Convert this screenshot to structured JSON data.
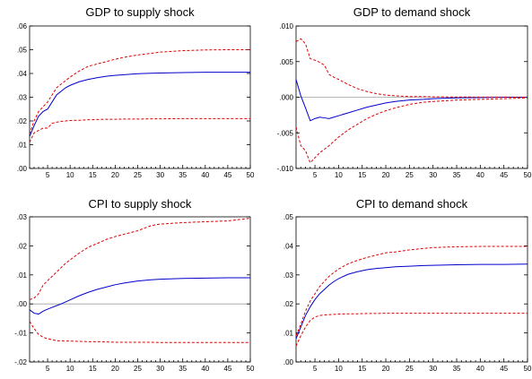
{
  "colors": {
    "irf": "#0000cc",
    "band": "#dd0000",
    "zero_line": "#a0a0a0",
    "background": "#ffffff"
  },
  "chart_data": [
    {
      "type": "line",
      "title": "GDP to supply shock",
      "xlim": [
        1,
        50
      ],
      "ylim": [
        0.0,
        0.06
      ],
      "x_ticks": [
        5,
        10,
        15,
        20,
        25,
        30,
        35,
        40,
        45,
        50
      ],
      "x_tick_labels": [
        "5",
        "10",
        "15",
        "20",
        "25",
        "30",
        "35",
        "40",
        "45",
        "50"
      ],
      "y_ticks": [
        0.0,
        0.01,
        0.02,
        0.03,
        0.04,
        0.05,
        0.06
      ],
      "y_tick_labels": [
        ".00",
        ".01",
        ".02",
        ".03",
        ".04",
        ".05",
        ".06"
      ],
      "zero_line": false,
      "grid": false,
      "x": [
        1,
        2,
        3,
        4,
        5,
        6,
        7,
        8,
        9,
        10,
        12,
        14,
        16,
        18,
        20,
        22,
        25,
        28,
        30,
        35,
        40,
        45,
        50
      ],
      "series": [
        {
          "role": "irf",
          "values": [
            0.0135,
            0.018,
            0.022,
            0.024,
            0.025,
            0.028,
            0.031,
            0.0325,
            0.034,
            0.035,
            0.0365,
            0.0375,
            0.0382,
            0.0388,
            0.0392,
            0.0395,
            0.0399,
            0.0401,
            0.0402,
            0.0404,
            0.0405,
            0.0405,
            0.0405
          ]
        },
        {
          "role": "upper",
          "values": [
            0.0145,
            0.02,
            0.024,
            0.026,
            0.028,
            0.031,
            0.034,
            0.0355,
            0.037,
            0.0385,
            0.041,
            0.043,
            0.044,
            0.045,
            0.046,
            0.0468,
            0.0478,
            0.0485,
            0.049,
            0.0496,
            0.0499,
            0.05,
            0.05
          ]
        },
        {
          "role": "lower",
          "values": [
            0.011,
            0.015,
            0.016,
            0.017,
            0.017,
            0.019,
            0.0195,
            0.0198,
            0.02,
            0.0202,
            0.0203,
            0.0205,
            0.0206,
            0.0207,
            0.0207,
            0.0208,
            0.0208,
            0.0209,
            0.0209,
            0.021,
            0.021,
            0.021,
            0.021
          ]
        }
      ]
    },
    {
      "type": "line",
      "title": "GDP to demand shock",
      "xlim": [
        1,
        50
      ],
      "ylim": [
        -0.01,
        0.01
      ],
      "x_ticks": [
        5,
        10,
        15,
        20,
        25,
        30,
        35,
        40,
        45,
        50
      ],
      "x_tick_labels": [
        "5",
        "10",
        "15",
        "20",
        "25",
        "30",
        "35",
        "40",
        "45",
        "50"
      ],
      "y_ticks": [
        -0.01,
        -0.005,
        0.0,
        0.005,
        0.01
      ],
      "y_tick_labels": [
        "-.010",
        "-.005",
        ".000",
        ".005",
        ".010"
      ],
      "zero_line": true,
      "grid": false,
      "x": [
        1,
        2,
        3,
        4,
        5,
        6,
        7,
        8,
        9,
        10,
        12,
        14,
        16,
        18,
        20,
        22,
        25,
        28,
        30,
        35,
        40,
        45,
        50
      ],
      "series": [
        {
          "role": "irf",
          "values": [
            0.0025,
            0.0002,
            -0.0015,
            -0.0033,
            -0.003,
            -0.0028,
            -0.0029,
            -0.003,
            -0.0028,
            -0.0026,
            -0.0022,
            -0.0018,
            -0.0014,
            -0.0011,
            -0.0008,
            -0.0006,
            -0.0004,
            -0.0003,
            -0.0002,
            -0.0001,
            -5e-05,
            0.0,
            0.0
          ]
        },
        {
          "role": "upper",
          "values": [
            0.0078,
            0.0082,
            0.0075,
            0.0054,
            0.0052,
            0.0049,
            0.0045,
            0.0032,
            0.0028,
            0.0025,
            0.0018,
            0.0012,
            0.0008,
            0.0005,
            0.0003,
            0.0002,
            0.0001,
            8e-05,
            5e-05,
            3e-05,
            2e-05,
            1e-05,
            1e-05
          ]
        },
        {
          "role": "lower",
          "values": [
            -0.0042,
            -0.0068,
            -0.0075,
            -0.0092,
            -0.0085,
            -0.0078,
            -0.0073,
            -0.0068,
            -0.0062,
            -0.0056,
            -0.0046,
            -0.0038,
            -0.003,
            -0.0024,
            -0.0019,
            -0.0015,
            -0.001,
            -0.0007,
            -0.0006,
            -0.0004,
            -0.0003,
            -0.0002,
            -0.0001
          ]
        }
      ]
    },
    {
      "type": "line",
      "title": "CPI to supply shock",
      "xlim": [
        1,
        50
      ],
      "ylim": [
        -0.02,
        0.03
      ],
      "x_ticks": [
        5,
        10,
        15,
        20,
        25,
        30,
        35,
        40,
        45,
        50
      ],
      "x_tick_labels": [
        "5",
        "10",
        "15",
        "20",
        "25",
        "30",
        "35",
        "40",
        "45",
        "50"
      ],
      "y_ticks": [
        -0.02,
        -0.01,
        0.0,
        0.01,
        0.02,
        0.03
      ],
      "y_tick_labels": [
        "-.02",
        "-.01",
        ".00",
        ".01",
        ".02",
        ".03"
      ],
      "zero_line": true,
      "grid": false,
      "x": [
        1,
        2,
        3,
        4,
        5,
        6,
        7,
        8,
        9,
        10,
        12,
        14,
        16,
        18,
        20,
        22,
        25,
        28,
        30,
        35,
        40,
        45,
        50
      ],
      "series": [
        {
          "role": "irf",
          "values": [
            -0.002,
            -0.0032,
            -0.0035,
            -0.0025,
            -0.0018,
            -0.0012,
            -0.0006,
            0.0,
            0.0007,
            0.0014,
            0.0028,
            0.004,
            0.005,
            0.0058,
            0.0066,
            0.0072,
            0.0079,
            0.0083,
            0.0085,
            0.0088,
            0.0089,
            0.009,
            0.009
          ]
        },
        {
          "role": "upper",
          "values": [
            0.0015,
            0.002,
            0.0035,
            0.0065,
            0.008,
            0.0095,
            0.011,
            0.0125,
            0.014,
            0.0152,
            0.0175,
            0.0195,
            0.0208,
            0.0222,
            0.0232,
            0.024,
            0.0252,
            0.027,
            0.0275,
            0.028,
            0.0283,
            0.0286,
            0.0295
          ]
        },
        {
          "role": "lower",
          "values": [
            -0.006,
            -0.0085,
            -0.0105,
            -0.0115,
            -0.012,
            -0.0123,
            -0.0127,
            -0.0127,
            -0.0128,
            -0.0128,
            -0.0129,
            -0.013,
            -0.013,
            -0.0131,
            -0.0132,
            -0.0132,
            -0.0132,
            -0.0132,
            -0.0133,
            -0.0133,
            -0.0133,
            -0.0133,
            -0.0133
          ]
        }
      ]
    },
    {
      "type": "line",
      "title": "CPI to demand shock",
      "xlim": [
        1,
        50
      ],
      "ylim": [
        0.0,
        0.05
      ],
      "x_ticks": [
        5,
        10,
        15,
        20,
        25,
        30,
        35,
        40,
        45,
        50
      ],
      "x_tick_labels": [
        "5",
        "10",
        "15",
        "20",
        "25",
        "30",
        "35",
        "40",
        "45",
        "50"
      ],
      "y_ticks": [
        0.0,
        0.01,
        0.02,
        0.03,
        0.04,
        0.05
      ],
      "y_tick_labels": [
        ".00",
        ".01",
        ".02",
        ".03",
        ".04",
        ".05"
      ],
      "zero_line": false,
      "grid": false,
      "x": [
        1,
        2,
        3,
        4,
        5,
        6,
        7,
        8,
        9,
        10,
        12,
        14,
        16,
        18,
        20,
        22,
        25,
        28,
        30,
        35,
        40,
        45,
        50
      ],
      "series": [
        {
          "role": "irf",
          "values": [
            0.008,
            0.012,
            0.016,
            0.019,
            0.0215,
            0.0235,
            0.025,
            0.0265,
            0.0277,
            0.0287,
            0.0302,
            0.0311,
            0.0318,
            0.0322,
            0.0325,
            0.0328,
            0.033,
            0.0332,
            0.0333,
            0.0335,
            0.0336,
            0.0336,
            0.0337
          ]
        },
        {
          "role": "upper",
          "values": [
            0.009,
            0.013,
            0.0175,
            0.021,
            0.0235,
            0.026,
            0.0278,
            0.0295,
            0.0308,
            0.032,
            0.0338,
            0.035,
            0.036,
            0.0368,
            0.0376,
            0.0379,
            0.0386,
            0.0391,
            0.0394,
            0.0397,
            0.0398,
            0.0398,
            0.0398
          ]
        },
        {
          "role": "lower",
          "values": [
            0.0055,
            0.009,
            0.012,
            0.0143,
            0.0155,
            0.016,
            0.0162,
            0.0163,
            0.0164,
            0.0165,
            0.0166,
            0.0166,
            0.0167,
            0.0167,
            0.0168,
            0.0168,
            0.0168,
            0.0168,
            0.0168,
            0.0168,
            0.0168,
            0.0168,
            0.0168
          ]
        }
      ]
    }
  ]
}
